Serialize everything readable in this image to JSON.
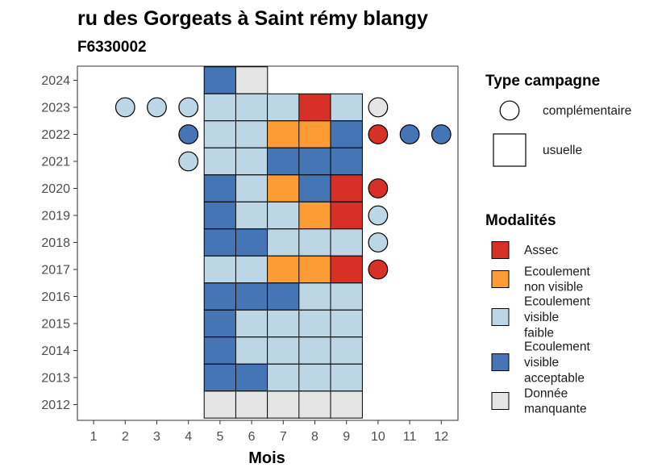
{
  "chart_data": {
    "type": "heatmap",
    "title": "ru des Gorgeats à Saint rémy blangy",
    "subtitle": "F6330002",
    "xlabel": "Mois",
    "ylabel": "",
    "x_ticks": [
      "1",
      "2",
      "3",
      "4",
      "5",
      "6",
      "7",
      "8",
      "9",
      "10",
      "11",
      "12"
    ],
    "y_ticks": [
      "2012",
      "2013",
      "2014",
      "2015",
      "2016",
      "2017",
      "2018",
      "2019",
      "2020",
      "2021",
      "2022",
      "2023",
      "2024"
    ],
    "xlim": [
      0.5,
      12.5
    ],
    "ylim": [
      2011.5,
      2024.5
    ],
    "grid": false,
    "legend_position": "right",
    "colors": {
      "Assec": "#d73027",
      "Ecoulement non visible": "#fd9b34",
      "Ecoulement visible faible": "#bcd6e6",
      "Ecoulement visible acceptable": "#4575b4",
      "Donnée manquante": "#e5e5e5"
    },
    "legend_campagne": {
      "title": "Type campagne",
      "items": [
        "complémentaire",
        "usuelle"
      ]
    },
    "legend_modalites": {
      "title": "Modalités",
      "items": [
        {
          "key": "Assec",
          "lines": [
            "Assec"
          ]
        },
        {
          "key": "Ecoulement non visible",
          "lines": [
            "Ecoulement",
            "non visible"
          ]
        },
        {
          "key": "Ecoulement visible faible",
          "lines": [
            "Ecoulement",
            "visible",
            "faible"
          ]
        },
        {
          "key": "Ecoulement visible acceptable",
          "lines": [
            "Ecoulement",
            "visible",
            "acceptable"
          ]
        },
        {
          "key": "Donnée manquante",
          "lines": [
            "Donnée",
            "manquante"
          ]
        }
      ]
    },
    "usuelle": [
      {
        "year": 2024,
        "month": 5,
        "modalite": "Ecoulement visible acceptable"
      },
      {
        "year": 2024,
        "month": 6,
        "modalite": "Donnée manquante"
      },
      {
        "year": 2023,
        "month": 5,
        "modalite": "Ecoulement visible faible"
      },
      {
        "year": 2023,
        "month": 6,
        "modalite": "Ecoulement visible faible"
      },
      {
        "year": 2023,
        "month": 7,
        "modalite": "Ecoulement visible faible"
      },
      {
        "year": 2023,
        "month": 8,
        "modalite": "Assec"
      },
      {
        "year": 2023,
        "month": 9,
        "modalite": "Ecoulement visible faible"
      },
      {
        "year": 2022,
        "month": 5,
        "modalite": "Ecoulement visible faible"
      },
      {
        "year": 2022,
        "month": 6,
        "modalite": "Ecoulement visible faible"
      },
      {
        "year": 2022,
        "month": 7,
        "modalite": "Ecoulement non visible"
      },
      {
        "year": 2022,
        "month": 8,
        "modalite": "Ecoulement non visible"
      },
      {
        "year": 2022,
        "month": 9,
        "modalite": "Ecoulement visible acceptable"
      },
      {
        "year": 2021,
        "month": 5,
        "modalite": "Ecoulement visible faible"
      },
      {
        "year": 2021,
        "month": 6,
        "modalite": "Ecoulement visible faible"
      },
      {
        "year": 2021,
        "month": 7,
        "modalite": "Ecoulement visible acceptable"
      },
      {
        "year": 2021,
        "month": 8,
        "modalite": "Ecoulement visible acceptable"
      },
      {
        "year": 2021,
        "month": 9,
        "modalite": "Ecoulement visible acceptable"
      },
      {
        "year": 2020,
        "month": 5,
        "modalite": "Ecoulement visible acceptable"
      },
      {
        "year": 2020,
        "month": 6,
        "modalite": "Ecoulement visible faible"
      },
      {
        "year": 2020,
        "month": 7,
        "modalite": "Ecoulement non visible"
      },
      {
        "year": 2020,
        "month": 8,
        "modalite": "Ecoulement visible acceptable"
      },
      {
        "year": 2020,
        "month": 9,
        "modalite": "Assec"
      },
      {
        "year": 2019,
        "month": 5,
        "modalite": "Ecoulement visible acceptable"
      },
      {
        "year": 2019,
        "month": 6,
        "modalite": "Ecoulement visible faible"
      },
      {
        "year": 2019,
        "month": 7,
        "modalite": "Ecoulement visible faible"
      },
      {
        "year": 2019,
        "month": 8,
        "modalite": "Ecoulement non visible"
      },
      {
        "year": 2019,
        "month": 9,
        "modalite": "Assec"
      },
      {
        "year": 2018,
        "month": 5,
        "modalite": "Ecoulement visible acceptable"
      },
      {
        "year": 2018,
        "month": 6,
        "modalite": "Ecoulement visible acceptable"
      },
      {
        "year": 2018,
        "month": 7,
        "modalite": "Ecoulement visible faible"
      },
      {
        "year": 2018,
        "month": 8,
        "modalite": "Ecoulement visible faible"
      },
      {
        "year": 2018,
        "month": 9,
        "modalite": "Ecoulement visible faible"
      },
      {
        "year": 2017,
        "month": 5,
        "modalite": "Ecoulement visible faible"
      },
      {
        "year": 2017,
        "month": 6,
        "modalite": "Ecoulement visible faible"
      },
      {
        "year": 2017,
        "month": 7,
        "modalite": "Ecoulement non visible"
      },
      {
        "year": 2017,
        "month": 8,
        "modalite": "Ecoulement non visible"
      },
      {
        "year": 2017,
        "month": 9,
        "modalite": "Assec"
      },
      {
        "year": 2016,
        "month": 5,
        "modalite": "Ecoulement visible acceptable"
      },
      {
        "year": 2016,
        "month": 6,
        "modalite": "Ecoulement visible acceptable"
      },
      {
        "year": 2016,
        "month": 7,
        "modalite": "Ecoulement visible acceptable"
      },
      {
        "year": 2016,
        "month": 8,
        "modalite": "Ecoulement visible faible"
      },
      {
        "year": 2016,
        "month": 9,
        "modalite": "Ecoulement visible faible"
      },
      {
        "year": 2015,
        "month": 5,
        "modalite": "Ecoulement visible acceptable"
      },
      {
        "year": 2015,
        "month": 6,
        "modalite": "Ecoulement visible faible"
      },
      {
        "year": 2015,
        "month": 7,
        "modalite": "Ecoulement visible faible"
      },
      {
        "year": 2015,
        "month": 8,
        "modalite": "Ecoulement visible faible"
      },
      {
        "year": 2015,
        "month": 9,
        "modalite": "Ecoulement visible faible"
      },
      {
        "year": 2014,
        "month": 5,
        "modalite": "Ecoulement visible acceptable"
      },
      {
        "year": 2014,
        "month": 6,
        "modalite": "Ecoulement visible faible"
      },
      {
        "year": 2014,
        "month": 7,
        "modalite": "Ecoulement visible faible"
      },
      {
        "year": 2014,
        "month": 8,
        "modalite": "Ecoulement visible faible"
      },
      {
        "year": 2014,
        "month": 9,
        "modalite": "Ecoulement visible faible"
      },
      {
        "year": 2013,
        "month": 5,
        "modalite": "Ecoulement visible acceptable"
      },
      {
        "year": 2013,
        "month": 6,
        "modalite": "Ecoulement visible acceptable"
      },
      {
        "year": 2013,
        "month": 7,
        "modalite": "Ecoulement visible faible"
      },
      {
        "year": 2013,
        "month": 8,
        "modalite": "Ecoulement visible faible"
      },
      {
        "year": 2013,
        "month": 9,
        "modalite": "Ecoulement visible faible"
      },
      {
        "year": 2012,
        "month": 5,
        "modalite": "Donnée manquante"
      },
      {
        "year": 2012,
        "month": 6,
        "modalite": "Donnée manquante"
      },
      {
        "year": 2012,
        "month": 7,
        "modalite": "Donnée manquante"
      },
      {
        "year": 2012,
        "month": 8,
        "modalite": "Donnée manquante"
      },
      {
        "year": 2012,
        "month": 9,
        "modalite": "Donnée manquante"
      }
    ],
    "complementaire": [
      {
        "year": 2023,
        "month": 2,
        "modalite": "Ecoulement visible faible"
      },
      {
        "year": 2023,
        "month": 3,
        "modalite": "Ecoulement visible faible"
      },
      {
        "year": 2023,
        "month": 4,
        "modalite": "Ecoulement visible faible"
      },
      {
        "year": 2023,
        "month": 10,
        "modalite": "Donnée manquante"
      },
      {
        "year": 2022,
        "month": 4,
        "modalite": "Ecoulement visible acceptable"
      },
      {
        "year": 2022,
        "month": 10,
        "modalite": "Assec"
      },
      {
        "year": 2022,
        "month": 11,
        "modalite": "Ecoulement visible acceptable"
      },
      {
        "year": 2022,
        "month": 12,
        "modalite": "Ecoulement visible acceptable"
      },
      {
        "year": 2021,
        "month": 4,
        "modalite": "Ecoulement visible faible"
      },
      {
        "year": 2020,
        "month": 10,
        "modalite": "Assec"
      },
      {
        "year": 2019,
        "month": 10,
        "modalite": "Ecoulement visible faible"
      },
      {
        "year": 2018,
        "month": 10,
        "modalite": "Ecoulement visible faible"
      },
      {
        "year": 2017,
        "month": 10,
        "modalite": "Assec"
      }
    ]
  }
}
